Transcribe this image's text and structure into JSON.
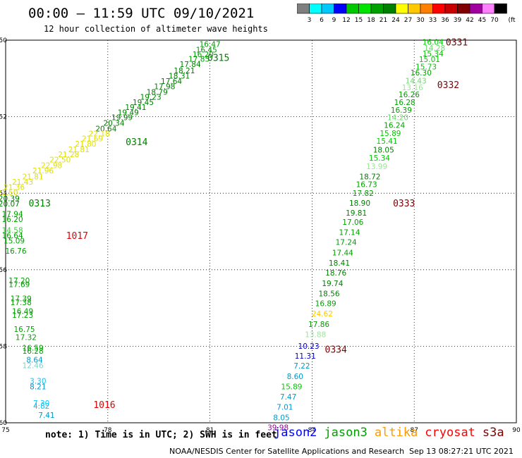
{
  "header": {
    "title": "00:00 – 11:59 UTC 09/10/2021",
    "subtitle": "12 hour collection of altimeter wave heights"
  },
  "colorbar": {
    "unit": "(ft)",
    "ticks": [
      "3",
      "6",
      "9",
      "12",
      "15",
      "18",
      "21",
      "24",
      "27",
      "30",
      "33",
      "36",
      "39",
      "42",
      "45",
      "70"
    ],
    "colors": [
      "#7f7f7f",
      "#00ffff",
      "#00c8ff",
      "#0000ff",
      "#00c800",
      "#00e400",
      "#00a000",
      "#008000",
      "#ffff00",
      "#ffc800",
      "#ff8000",
      "#ff0000",
      "#c80000",
      "#800000",
      "#a000a0",
      "#ff80ff",
      "#000000"
    ]
  },
  "chart_data": {
    "type": "scatter",
    "xlim": [
      75,
      90
    ],
    "ylim": [
      50,
      60
    ],
    "x_ticks": [
      "75",
      "78",
      "81",
      "84",
      "87",
      "90"
    ],
    "y_ticks": [
      "50",
      "52",
      "54",
      "56",
      "58",
      "60"
    ],
    "y_tick_prefix": "-",
    "grid": true,
    "points": [
      {
        "x": 81.0,
        "y": 50.1,
        "label": "16.47",
        "color": "#00a000"
      },
      {
        "x": 80.9,
        "y": 50.25,
        "label": "16.45",
        "color": "#00a000"
      },
      {
        "x": 80.8,
        "y": 50.37,
        "label": "16.20",
        "color": "#00a000"
      },
      {
        "x": 80.68,
        "y": 50.49,
        "label": "17.85",
        "color": "#00a000"
      },
      {
        "x": 80.42,
        "y": 50.63,
        "label": "17.84",
        "color": "#008000"
      },
      {
        "x": 80.25,
        "y": 50.79,
        "label": "18.21",
        "color": "#008000"
      },
      {
        "x": 80.1,
        "y": 50.93,
        "label": "18.31",
        "color": "#008000"
      },
      {
        "x": 79.87,
        "y": 51.07,
        "label": "17.64",
        "color": "#008000"
      },
      {
        "x": 79.67,
        "y": 51.21,
        "label": "17.98",
        "color": "#008000"
      },
      {
        "x": 79.45,
        "y": 51.35,
        "label": "18.79",
        "color": "#008000"
      },
      {
        "x": 79.26,
        "y": 51.48,
        "label": "19.23",
        "color": "#008000"
      },
      {
        "x": 79.04,
        "y": 51.62,
        "label": "19.45",
        "color": "#008000"
      },
      {
        "x": 78.82,
        "y": 51.75,
        "label": "19.41",
        "color": "#008000"
      },
      {
        "x": 78.6,
        "y": 51.89,
        "label": "19.49",
        "color": "#008000"
      },
      {
        "x": 78.42,
        "y": 52.02,
        "label": "19.99",
        "color": "#008000"
      },
      {
        "x": 78.18,
        "y": 52.16,
        "label": "20.34",
        "color": "#008000"
      },
      {
        "x": 77.95,
        "y": 52.31,
        "label": "20.64",
        "color": "#008000"
      },
      {
        "x": 77.75,
        "y": 52.44,
        "label": "22.18",
        "color": "#e0e000"
      },
      {
        "x": 77.55,
        "y": 52.57,
        "label": "21.69",
        "color": "#e0e000"
      },
      {
        "x": 77.35,
        "y": 52.71,
        "label": "21.80",
        "color": "#e0e000"
      },
      {
        "x": 77.15,
        "y": 52.85,
        "label": "21.81",
        "color": "#e0e000"
      },
      {
        "x": 76.85,
        "y": 52.98,
        "label": "21.28",
        "color": "#e0e000"
      },
      {
        "x": 76.6,
        "y": 53.12,
        "label": "22.50",
        "color": "#e0e000"
      },
      {
        "x": 76.35,
        "y": 53.27,
        "label": "22.98",
        "color": "#e0e000"
      },
      {
        "x": 76.1,
        "y": 53.41,
        "label": "21.96",
        "color": "#e0e000"
      },
      {
        "x": 75.8,
        "y": 53.56,
        "label": "21.81",
        "color": "#e0e000"
      },
      {
        "x": 75.5,
        "y": 53.7,
        "label": "21.43",
        "color": "#e0e000"
      },
      {
        "x": 75.25,
        "y": 53.84,
        "label": "21.36",
        "color": "#e0e000"
      },
      {
        "x": 75.05,
        "y": 53.98,
        "label": "21.50",
        "color": "#e0e000"
      },
      {
        "x": 75.1,
        "y": 54.13,
        "label": "20.39",
        "color": "#008000"
      },
      {
        "x": 75.1,
        "y": 54.27,
        "label": "20.07",
        "color": "#008000"
      },
      {
        "x": 75.2,
        "y": 54.54,
        "label": "17.94",
        "color": "#00a000"
      },
      {
        "x": 75.2,
        "y": 54.68,
        "label": "16.20",
        "color": "#00a000"
      },
      {
        "x": 75.2,
        "y": 54.96,
        "label": "14.58",
        "color": "#33d633"
      },
      {
        "x": 75.2,
        "y": 55.1,
        "label": "16.64",
        "color": "#00a000"
      },
      {
        "x": 75.25,
        "y": 55.24,
        "label": "15.09",
        "color": "#00a000"
      },
      {
        "x": 75.3,
        "y": 55.51,
        "label": "16.76",
        "color": "#00a000"
      },
      {
        "x": 75.4,
        "y": 56.28,
        "label": "17.20",
        "color": "#00a000"
      },
      {
        "x": 75.4,
        "y": 56.38,
        "label": "17.69",
        "color": "#00a000"
      },
      {
        "x": 75.45,
        "y": 56.75,
        "label": "17.39",
        "color": "#00a000"
      },
      {
        "x": 75.45,
        "y": 56.85,
        "label": "17.38",
        "color": "#00a000"
      },
      {
        "x": 75.5,
        "y": 57.08,
        "label": "16.49",
        "color": "#00a000"
      },
      {
        "x": 75.5,
        "y": 57.18,
        "label": "17.23",
        "color": "#00a000"
      },
      {
        "x": 75.55,
        "y": 57.55,
        "label": "16.75",
        "color": "#00a000"
      },
      {
        "x": 75.6,
        "y": 57.76,
        "label": "17.32",
        "color": "#00a000"
      },
      {
        "x": 75.8,
        "y": 58.04,
        "label": "16.59",
        "color": "#00a000"
      },
      {
        "x": 75.8,
        "y": 58.12,
        "label": "16.28",
        "color": "#00a000"
      },
      {
        "x": 75.85,
        "y": 58.35,
        "label": "8.64",
        "color": "#0099cc"
      },
      {
        "x": 75.8,
        "y": 58.5,
        "label": "12.46",
        "color": "#80d0d0"
      },
      {
        "x": 75.95,
        "y": 58.9,
        "label": "3.30",
        "color": "#00c8ff"
      },
      {
        "x": 75.95,
        "y": 59.05,
        "label": "8.21",
        "color": "#0099cc"
      },
      {
        "x": 76.05,
        "y": 59.48,
        "label": "7.30",
        "color": "#00c8ff"
      },
      {
        "x": 76.05,
        "y": 59.56,
        "label": "4.82",
        "color": "#00c8ff"
      },
      {
        "x": 76.2,
        "y": 59.8,
        "label": "7.41",
        "color": "#0099cc"
      },
      {
        "x": 87.55,
        "y": 50.05,
        "label": "16.04",
        "color": "#00c800"
      },
      {
        "x": 87.6,
        "y": 50.2,
        "label": "14.28",
        "color": "#66dd66"
      },
      {
        "x": 87.55,
        "y": 50.35,
        "label": "15.34",
        "color": "#00c800"
      },
      {
        "x": 87.45,
        "y": 50.5,
        "label": "15.01",
        "color": "#00c800"
      },
      {
        "x": 87.35,
        "y": 50.69,
        "label": "15.73",
        "color": "#00c800"
      },
      {
        "x": 87.2,
        "y": 50.85,
        "label": "16.30",
        "color": "#00a000"
      },
      {
        "x": 87.05,
        "y": 51.06,
        "label": "14.43",
        "color": "#66dd66"
      },
      {
        "x": 86.95,
        "y": 51.23,
        "label": "13.16",
        "color": "#99e699"
      },
      {
        "x": 86.85,
        "y": 51.42,
        "label": "16.26",
        "color": "#00a000"
      },
      {
        "x": 86.72,
        "y": 51.62,
        "label": "16.28",
        "color": "#00a000"
      },
      {
        "x": 86.62,
        "y": 51.82,
        "label": "16.39",
        "color": "#00a000"
      },
      {
        "x": 86.52,
        "y": 52.02,
        "label": "14.20",
        "color": "#66dd66"
      },
      {
        "x": 86.42,
        "y": 52.22,
        "label": "16.24",
        "color": "#00a000"
      },
      {
        "x": 86.3,
        "y": 52.43,
        "label": "15.89",
        "color": "#00c800"
      },
      {
        "x": 86.2,
        "y": 52.63,
        "label": "15.41",
        "color": "#00c800"
      },
      {
        "x": 86.1,
        "y": 52.86,
        "label": "18.05",
        "color": "#008000"
      },
      {
        "x": 85.98,
        "y": 53.08,
        "label": "15.34",
        "color": "#00c800"
      },
      {
        "x": 85.9,
        "y": 53.3,
        "label": "13.99",
        "color": "#99e699"
      },
      {
        "x": 85.7,
        "y": 53.56,
        "label": "18.72",
        "color": "#008000"
      },
      {
        "x": 85.6,
        "y": 53.77,
        "label": "16.73",
        "color": "#00a000"
      },
      {
        "x": 85.5,
        "y": 54.0,
        "label": "17.82",
        "color": "#00a000"
      },
      {
        "x": 85.4,
        "y": 54.25,
        "label": "18.90",
        "color": "#008000"
      },
      {
        "x": 85.3,
        "y": 54.51,
        "label": "19.81",
        "color": "#008000"
      },
      {
        "x": 85.2,
        "y": 54.75,
        "label": "17.06",
        "color": "#00a000"
      },
      {
        "x": 85.1,
        "y": 55.02,
        "label": "17.14",
        "color": "#00a000"
      },
      {
        "x": 85.0,
        "y": 55.28,
        "label": "17.24",
        "color": "#00a000"
      },
      {
        "x": 84.9,
        "y": 55.55,
        "label": "17.44",
        "color": "#00a000"
      },
      {
        "x": 84.8,
        "y": 55.82,
        "label": "18.41",
        "color": "#008000"
      },
      {
        "x": 84.7,
        "y": 56.08,
        "label": "18.76",
        "color": "#008000"
      },
      {
        "x": 84.6,
        "y": 56.35,
        "label": "19.74",
        "color": "#008000"
      },
      {
        "x": 84.5,
        "y": 56.62,
        "label": "18.56",
        "color": "#008000"
      },
      {
        "x": 84.4,
        "y": 56.88,
        "label": "16.89",
        "color": "#00a000"
      },
      {
        "x": 84.3,
        "y": 57.15,
        "label": "24.62",
        "color": "#ffc800"
      },
      {
        "x": 84.2,
        "y": 57.42,
        "label": "17.86",
        "color": "#00a000"
      },
      {
        "x": 84.1,
        "y": 57.69,
        "label": "13.88",
        "color": "#99e699"
      },
      {
        "x": 83.9,
        "y": 57.99,
        "label": "10.23",
        "color": "#0000c8"
      },
      {
        "x": 83.8,
        "y": 58.25,
        "label": "11.31",
        "color": "#0000c8"
      },
      {
        "x": 83.7,
        "y": 58.51,
        "label": "7.22",
        "color": "#0099cc"
      },
      {
        "x": 83.5,
        "y": 58.78,
        "label": "8.60",
        "color": "#0099cc"
      },
      {
        "x": 83.4,
        "y": 59.05,
        "label": "15.89",
        "color": "#00c800"
      },
      {
        "x": 83.3,
        "y": 59.32,
        "label": "7.47",
        "color": "#0099cc"
      },
      {
        "x": 83.2,
        "y": 59.59,
        "label": "7.01",
        "color": "#0099cc"
      },
      {
        "x": 83.1,
        "y": 59.86,
        "label": "8.05",
        "color": "#0099cc"
      },
      {
        "x": 83.0,
        "y": 60.12,
        "label": "39.98",
        "color": "#a000a0"
      }
    ],
    "time_labels": [
      {
        "x": 81.25,
        "y": 50.45,
        "label": "0315",
        "color": "#008000"
      },
      {
        "x": 78.85,
        "y": 52.65,
        "label": "0314",
        "color": "#008000"
      },
      {
        "x": 76.0,
        "y": 54.25,
        "label": "0313",
        "color": "#008000"
      },
      {
        "x": 77.1,
        "y": 55.1,
        "label": "1017",
        "color": "#e00000"
      },
      {
        "x": 77.9,
        "y": 59.52,
        "label": "1016",
        "color": "#e00000"
      },
      {
        "x": 88.25,
        "y": 50.05,
        "label": "0331",
        "color": "#800000"
      },
      {
        "x": 88.0,
        "y": 51.16,
        "label": "0332",
        "color": "#800000"
      },
      {
        "x": 86.7,
        "y": 54.25,
        "label": "0333",
        "color": "#800000"
      },
      {
        "x": 84.7,
        "y": 58.08,
        "label": "0334",
        "color": "#800000"
      }
    ]
  },
  "footer": {
    "note": "note: 1) Time is in UTC; 2) SWH is in feet",
    "satellites": [
      {
        "name": "jason2",
        "color": "#0000ff"
      },
      {
        "name": "jason3",
        "color": "#00a000"
      },
      {
        "name": "altika",
        "color": "#ff9900"
      },
      {
        "name": "cryosat",
        "color": "#ff0000"
      },
      {
        "name": "s3a",
        "color": "#800000"
      }
    ],
    "credit": "NOAA/NESDIS Center for Satellite Applications and Research",
    "timestamp": "Sep 13 08:27:21 UTC 2021"
  }
}
